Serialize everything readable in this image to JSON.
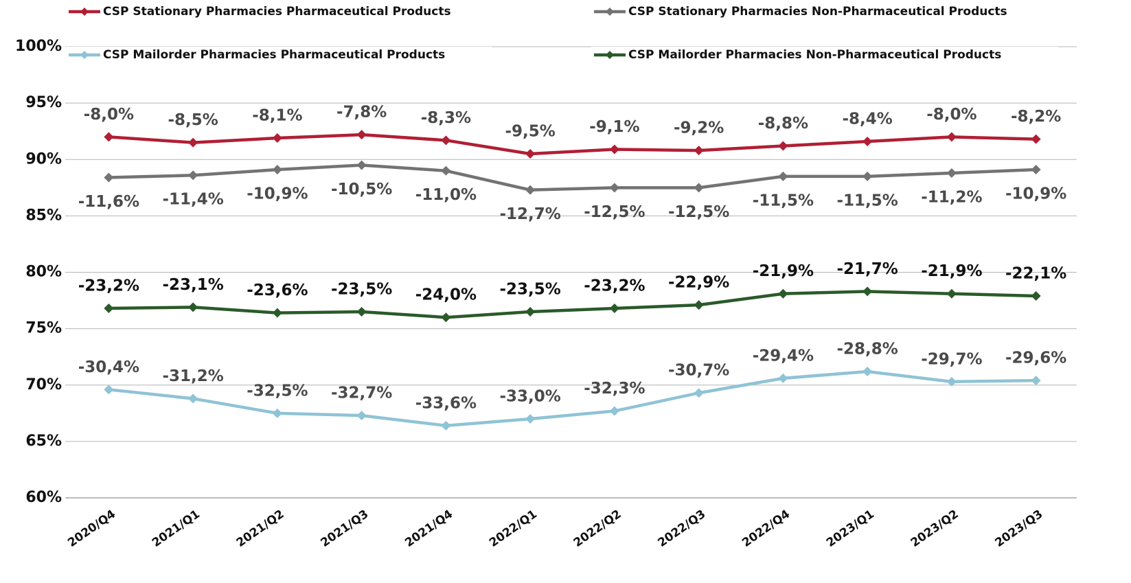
{
  "chart_data": {
    "type": "line",
    "categories": [
      "2020/Q4",
      "2021/Q1",
      "2021/Q2",
      "2021/Q3",
      "2021/Q4",
      "2022/Q1",
      "2022/Q2",
      "2022/Q3",
      "2022/Q4",
      "2023/Q1",
      "2023/Q2",
      "2023/Q3"
    ],
    "ylim": [
      60,
      100
    ],
    "yticks": [
      {
        "value": 60,
        "label": "60%"
      },
      {
        "value": 65,
        "label": "65%"
      },
      {
        "value": 70,
        "label": "70%"
      },
      {
        "value": 75,
        "label": "75%"
      },
      {
        "value": 80,
        "label": "80%"
      },
      {
        "value": 85,
        "label": "85%"
      },
      {
        "value": 90,
        "label": "90%"
      },
      {
        "value": 95,
        "label": "95%"
      },
      {
        "value": 100,
        "label": "100%"
      }
    ],
    "grid": true,
    "series": [
      {
        "name": "CSP Stationary Pharmacies Pharmaceutical Products",
        "color": "#b01f35",
        "values": [
          92,
          91.5,
          91.9,
          92.2,
          91.7,
          90.5,
          90.9,
          90.8,
          91.2,
          91.6,
          92,
          91.8
        ],
        "data_labels": [
          "-8,0%",
          "-8,5%",
          "-8,1%",
          "-7,8%",
          "-8,3%",
          "-9,5%",
          "-9,1%",
          "-9,2%",
          "-8,8%",
          "-8,4%",
          "-8,0%",
          "-8,2%"
        ]
      },
      {
        "name": "CSP Stationary Pharmacies Non-Pharmaceutical Products",
        "color": "#737373",
        "values": [
          88.4,
          88.6,
          89.1,
          89.5,
          89,
          87.3,
          87.5,
          87.5,
          88.5,
          88.5,
          88.8,
          89.1
        ],
        "data_labels": [
          "-11,6%",
          "-11,4%",
          "-10,9%",
          "-10,5%",
          "-11,0%",
          "-12,7%",
          "-12,5%",
          "-12,5%",
          "-11,5%",
          "-11,5%",
          "-11,2%",
          "-10,9%"
        ]
      },
      {
        "name": "CSP Mailorder Pharmacies Pharmaceutical Products",
        "color": "#8fc3d6",
        "values": [
          69.6,
          68.8,
          67.5,
          67.3,
          66.4,
          67,
          67.7,
          69.3,
          70.6,
          71.2,
          70.3,
          70.4
        ],
        "data_labels": [
          "-30,4%",
          "-31,2%",
          "-32,5%",
          "-32,7%",
          "-33,6%",
          "-33,0%",
          "-32,3%",
          "-30,7%",
          "-29,4%",
          "-28,8%",
          "-29,7%",
          "-29,6%"
        ]
      },
      {
        "name": "CSP Mailorder Pharmacies Non-Pharmaceutical Products",
        "color": "#2a5a2a",
        "values": [
          76.8,
          76.9,
          76.4,
          76.5,
          76,
          76.5,
          76.8,
          77.1,
          78.1,
          78.3,
          78.1,
          77.9
        ],
        "data_labels": [
          "-23,2%",
          "-23,1%",
          "-23,6%",
          "-23,5%",
          "-24,0%",
          "-23,5%",
          "-23,2%",
          "-22,9%",
          "-21,9%",
          "-21,7%",
          "-21,9%",
          "-22,1%"
        ]
      }
    ]
  }
}
